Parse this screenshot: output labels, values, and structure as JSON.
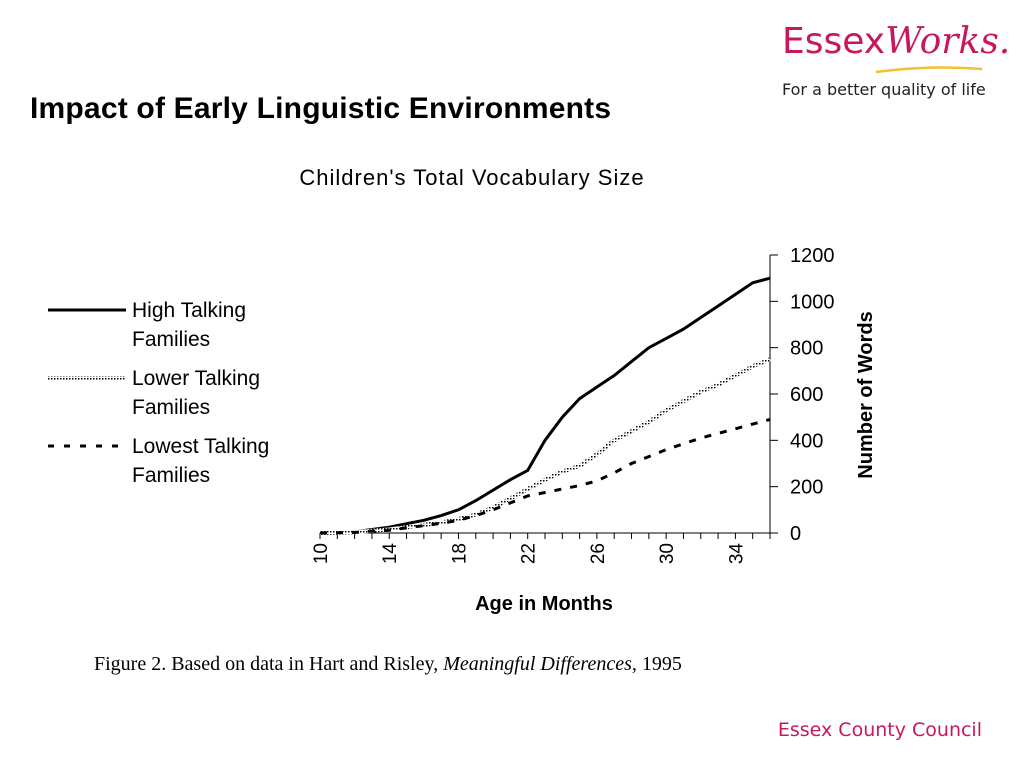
{
  "slide": {
    "title": "Impact of Early Linguistic Environments",
    "caption_prefix": "Figure 2.  Based on data in Hart and Risley, ",
    "caption_italic": "Meaningful Differences,",
    "caption_suffix": " 1995"
  },
  "logo": {
    "word_plain": "Essex",
    "word_italic": "Works.",
    "tagline": "For a better quality of life",
    "color": "#c8175d",
    "swoosh_color": "#f2c230"
  },
  "footer": {
    "brand": "Essex County Council"
  },
  "chart_data": {
    "type": "line",
    "title": "Children's Total Vocabulary Size",
    "xlabel": "Age in Months",
    "ylabel": "Number of Words",
    "xlim": [
      10,
      36
    ],
    "ylim": [
      0,
      1200
    ],
    "x_ticks": [
      "10",
      "14",
      "18",
      "22",
      "26",
      "30",
      "34"
    ],
    "y_ticks": [
      "0",
      "200",
      "400",
      "600",
      "800",
      "1000",
      "1200"
    ],
    "y_axis_side": "right",
    "legend_position": "left",
    "series": [
      {
        "name": "High Talking Families",
        "style": "solid",
        "x": [
          10,
          12,
          13,
          14,
          15,
          16,
          17,
          18,
          19,
          20,
          21,
          22,
          23,
          24,
          25,
          26,
          27,
          28,
          29,
          30,
          31,
          32,
          33,
          34,
          35,
          36
        ],
        "y": [
          0,
          5,
          15,
          25,
          40,
          55,
          75,
          100,
          140,
          185,
          230,
          270,
          400,
          500,
          580,
          630,
          680,
          740,
          800,
          840,
          880,
          930,
          980,
          1030,
          1080,
          1100
        ]
      },
      {
        "name": "Lower Talking Families",
        "style": "hatched",
        "x": [
          10,
          12,
          13,
          14,
          15,
          16,
          17,
          18,
          19,
          20,
          21,
          22,
          23,
          24,
          25,
          26,
          27,
          28,
          29,
          30,
          31,
          32,
          33,
          34,
          35,
          36
        ],
        "y": [
          0,
          3,
          10,
          15,
          25,
          35,
          45,
          60,
          80,
          110,
          150,
          190,
          230,
          265,
          290,
          340,
          400,
          440,
          480,
          530,
          570,
          610,
          640,
          680,
          720,
          750
        ]
      },
      {
        "name": "Lowest Talking Families",
        "style": "dashed",
        "x": [
          10,
          12,
          13,
          14,
          15,
          16,
          17,
          18,
          19,
          20,
          21,
          22,
          23,
          24,
          25,
          26,
          27,
          28,
          29,
          30,
          31,
          32,
          33,
          34,
          35,
          36
        ],
        "y": [
          0,
          2,
          8,
          12,
          22,
          32,
          42,
          55,
          75,
          100,
          130,
          160,
          175,
          190,
          205,
          225,
          260,
          300,
          330,
          360,
          385,
          410,
          430,
          450,
          470,
          490
        ]
      }
    ]
  }
}
